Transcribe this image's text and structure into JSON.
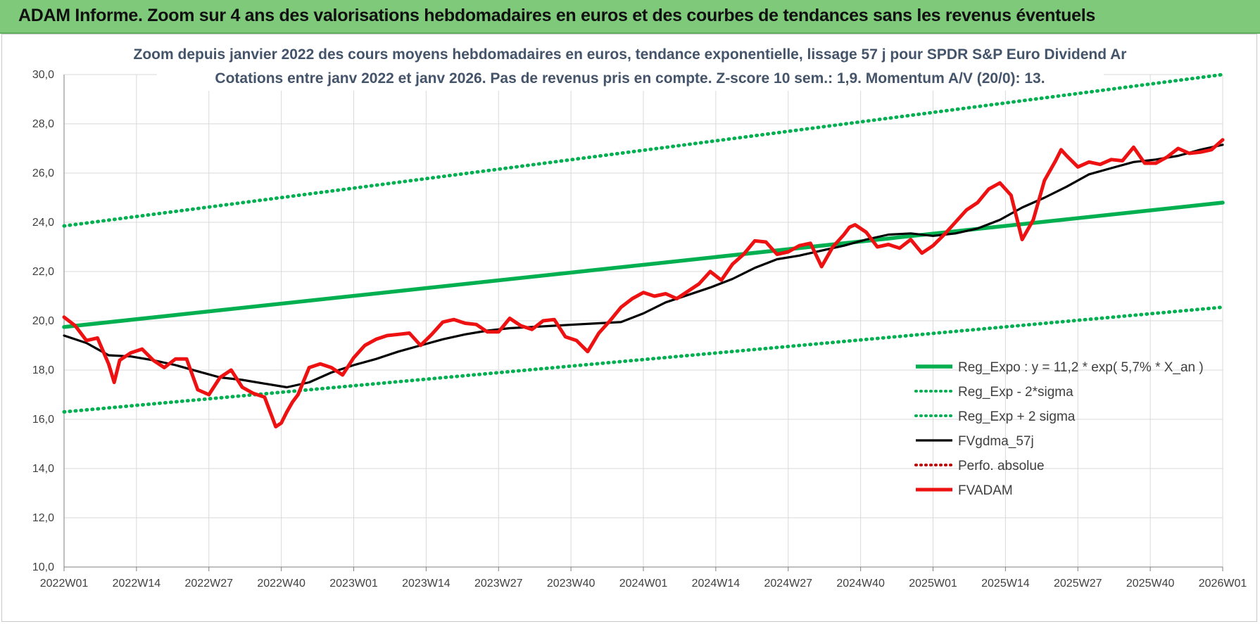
{
  "banner": {
    "title": "ADAM Informe. Zoom sur 4 ans des valorisations hebdomadaires en euros et des courbes de tendances sans les revenus éventuels"
  },
  "chart_data": {
    "type": "line",
    "subtitle_line1": "Zoom depuis janvier 2022 des cours moyens hebdomadaires en euros, tendance exponentielle, lissage 57 j pour SPDR S&P Euro Dividend Ar",
    "subtitle_line2": "Cotations entre janv 2022 et janv 2026. Pas de revenus pris en compte. Z-score 10 sem.: 1,9. Momentum A/V (20/0): 13.",
    "xlabel": "",
    "ylabel": "",
    "ylim": [
      10,
      30
    ],
    "yticks": [
      "10,0",
      "12,0",
      "14,0",
      "16,0",
      "18,0",
      "20,0",
      "22,0",
      "24,0",
      "26,0",
      "28,0",
      "30,0"
    ],
    "xticks": [
      "2022W01",
      "2022W14",
      "2022W27",
      "2022W40",
      "2023W01",
      "2023W14",
      "2023W27",
      "2023W40",
      "2024W01",
      "2024W14",
      "2024W27",
      "2024W40",
      "2025W01",
      "2025W14",
      "2025W27",
      "2025W40",
      "2026W01"
    ],
    "x_range_weeks": [
      0,
      208
    ],
    "grid": true,
    "legend_position": "bottom-right",
    "series": [
      {
        "name": "Reg_Expo : y = 11,2 * exp( 5,7% *  X_an )",
        "color": "#00b050",
        "style": "solid",
        "x": [
          0,
          208
        ],
        "y": [
          19.75,
          24.8
        ]
      },
      {
        "name": "Reg_Exp - 2*sigma",
        "color": "#00b050",
        "style": "dotted",
        "x": [
          0,
          208
        ],
        "y": [
          16.3,
          20.55
        ]
      },
      {
        "name": "Reg_Exp + 2 sigma",
        "color": "#00b050",
        "style": "dotted",
        "x": [
          0,
          208
        ],
        "y": [
          23.85,
          30.0
        ]
      },
      {
        "name": "FVgdma_57j",
        "color": "#000000",
        "style": "solid",
        "x": [
          0,
          4,
          8,
          12,
          16,
          20,
          24,
          28,
          32,
          36,
          40,
          44,
          48,
          52,
          56,
          60,
          64,
          68,
          72,
          76,
          80,
          84,
          88,
          92,
          96,
          100,
          104,
          108,
          112,
          116,
          120,
          124,
          128,
          132,
          136,
          140,
          144,
          148,
          152,
          156,
          160,
          164,
          168,
          172,
          176,
          180,
          184,
          188,
          192,
          196,
          200,
          204,
          208
        ],
        "y": [
          19.4,
          19.1,
          18.6,
          18.55,
          18.4,
          18.2,
          17.95,
          17.7,
          17.6,
          17.45,
          17.3,
          17.5,
          17.9,
          18.2,
          18.45,
          18.75,
          19.0,
          19.25,
          19.45,
          19.6,
          19.7,
          19.75,
          19.8,
          19.85,
          19.9,
          19.95,
          20.3,
          20.75,
          21.05,
          21.35,
          21.7,
          22.15,
          22.5,
          22.65,
          22.85,
          23.05,
          23.3,
          23.5,
          23.55,
          23.45,
          23.55,
          23.75,
          24.1,
          24.6,
          25.0,
          25.45,
          25.95,
          26.2,
          26.45,
          26.55,
          26.7,
          26.95,
          27.15
        ]
      },
      {
        "name": "Perfo. absolue",
        "color": "#c00000",
        "style": "dotted",
        "x": [],
        "y": []
      },
      {
        "name": "FVADAM",
        "color": "#ee1111",
        "style": "solid",
        "x": [
          0,
          2,
          4,
          6,
          8,
          9,
          10,
          12,
          14,
          16,
          18,
          20,
          22,
          24,
          26,
          28,
          30,
          32,
          34,
          36,
          38,
          39,
          40,
          41,
          42,
          44,
          46,
          48,
          50,
          52,
          54,
          56,
          58,
          60,
          62,
          64,
          66,
          68,
          70,
          72,
          74,
          76,
          78,
          80,
          82,
          84,
          86,
          88,
          90,
          92,
          94,
          96,
          98,
          100,
          102,
          104,
          106,
          108,
          110,
          112,
          114,
          116,
          118,
          120,
          122,
          124,
          126,
          128,
          130,
          132,
          134,
          136,
          138,
          140,
          141,
          142,
          144,
          146,
          148,
          150,
          152,
          154,
          156,
          158,
          160,
          162,
          164,
          166,
          168,
          170,
          172,
          174,
          176,
          178,
          179,
          180,
          182,
          184,
          186,
          188,
          190,
          192,
          194,
          196,
          198,
          200,
          202,
          204,
          206,
          208
        ],
        "y": [
          20.15,
          19.8,
          19.2,
          19.3,
          18.25,
          17.5,
          18.4,
          18.7,
          18.85,
          18.4,
          18.1,
          18.45,
          18.45,
          17.2,
          17.0,
          17.7,
          18.0,
          17.3,
          17.05,
          16.9,
          15.7,
          15.85,
          16.3,
          16.7,
          17.0,
          18.1,
          18.25,
          18.1,
          17.8,
          18.5,
          19.0,
          19.25,
          19.4,
          19.45,
          19.5,
          19.0,
          19.45,
          19.95,
          20.05,
          19.9,
          19.85,
          19.55,
          19.55,
          20.1,
          19.8,
          19.65,
          20.0,
          20.05,
          19.35,
          19.2,
          18.75,
          19.5,
          20.0,
          20.55,
          20.9,
          21.15,
          21.0,
          21.1,
          20.9,
          21.2,
          21.5,
          22.0,
          21.65,
          22.3,
          22.7,
          23.25,
          23.2,
          22.7,
          22.8,
          23.05,
          23.15,
          22.2,
          23.0,
          23.5,
          23.8,
          23.9,
          23.6,
          23.0,
          23.1,
          22.95,
          23.3,
          22.75,
          23.05,
          23.5,
          24.0,
          24.5,
          24.8,
          25.35,
          25.6,
          25.1,
          23.3,
          24.1,
          25.7,
          26.5,
          26.95,
          26.7,
          26.25,
          26.45,
          26.35,
          26.55,
          26.5,
          27.05,
          26.4,
          26.4,
          26.65,
          27.0,
          26.8,
          26.85,
          26.95,
          27.35
        ]
      }
    ]
  }
}
